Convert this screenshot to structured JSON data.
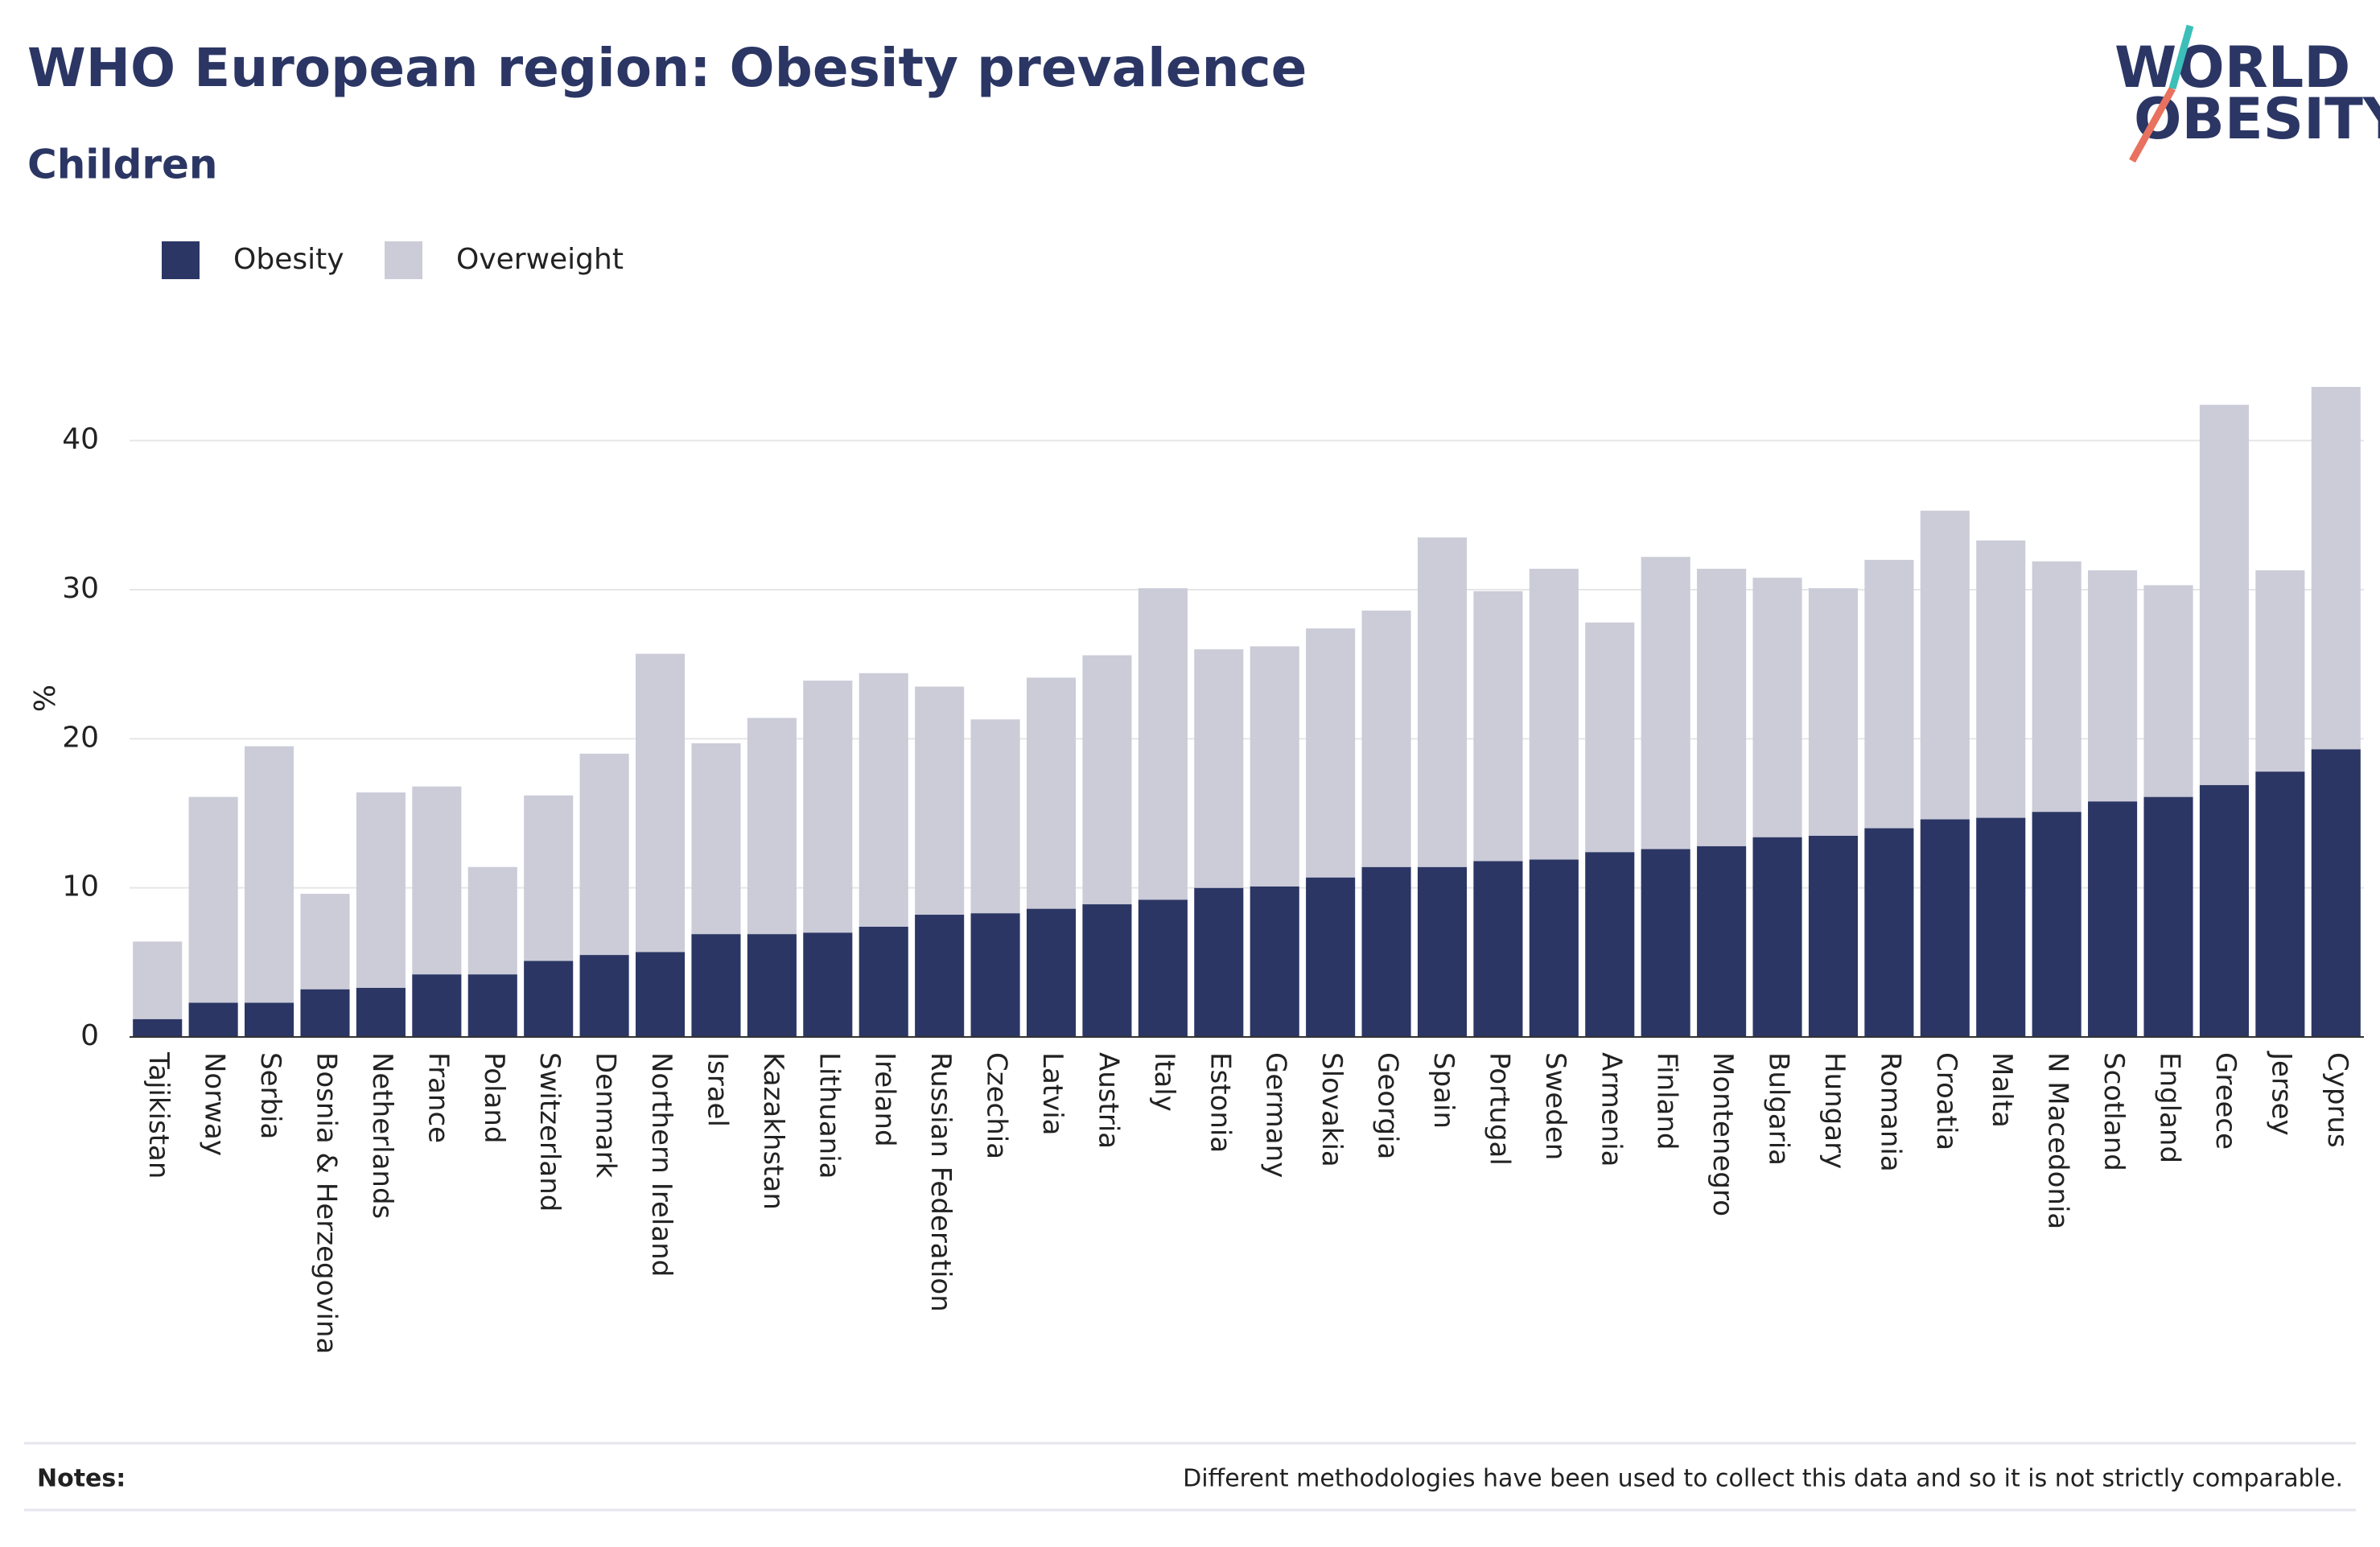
{
  "chart_data": {
    "type": "stacked-bar",
    "title": "WHO European region: Obesity prevalence",
    "subtitle": "Children",
    "y_label": "%",
    "categories": [
      "Tajikistan",
      "Norway",
      "Serbia",
      "Bosnia & Herzegovina",
      "Netherlands",
      "France",
      "Poland",
      "Switzerland",
      "Denmark",
      "Northern Ireland",
      "Israel",
      "Kazakhstan",
      "Lithuania",
      "Ireland",
      "Russian Federation",
      "Czechia",
      "Latvia",
      "Austria",
      "Italy",
      "Estonia",
      "Germany",
      "Slovakia",
      "Georgia",
      "Spain",
      "Portugal",
      "Sweden",
      "Armenia",
      "Finland",
      "Montenegro",
      "Bulgaria",
      "Hungary",
      "Romania",
      "Croatia",
      "Malta",
      "N Macedonia",
      "Scotland",
      "England",
      "Greece",
      "Jersey",
      "Cyprus"
    ],
    "series": [
      {
        "name": "Obesity",
        "color": "#2b3664",
        "values": [
          1.2,
          2.3,
          2.3,
          3.2,
          3.3,
          4.2,
          4.2,
          5.1,
          5.5,
          5.7,
          6.9,
          6.9,
          7.0,
          7.4,
          8.2,
          8.3,
          8.6,
          8.9,
          9.2,
          10.0,
          10.1,
          10.7,
          11.4,
          11.4,
          11.8,
          11.9,
          12.4,
          12.6,
          12.8,
          13.4,
          13.5,
          14.0,
          14.6,
          14.7,
          15.1,
          15.8,
          16.1,
          16.9,
          17.8,
          19.3
        ]
      },
      {
        "name": "Overweight",
        "color": "#cbccd8",
        "values": [
          5.2,
          13.8,
          17.2,
          6.4,
          13.1,
          12.6,
          7.2,
          11.1,
          13.5,
          20.0,
          12.8,
          14.5,
          16.9,
          17.0,
          15.3,
          13.0,
          15.5,
          16.7,
          20.9,
          16.0,
          16.1,
          16.7,
          17.2,
          22.1,
          18.1,
          19.5,
          15.4,
          19.6,
          18.6,
          17.4,
          16.6,
          18.0,
          20.7,
          18.6,
          16.8,
          15.5,
          14.2,
          25.5,
          13.5,
          24.3
        ]
      }
    ],
    "ylim": [
      0,
      45
    ],
    "yticks": [
      0,
      10,
      20,
      30,
      40
    ],
    "grid": true,
    "legend": "top-left"
  },
  "logo": {
    "line1": "WORLD",
    "line2": "OBESITY"
  },
  "notes": {
    "label": "Notes:",
    "text": "Different methodologies have been used to collect this data and so it is not strictly comparable."
  }
}
